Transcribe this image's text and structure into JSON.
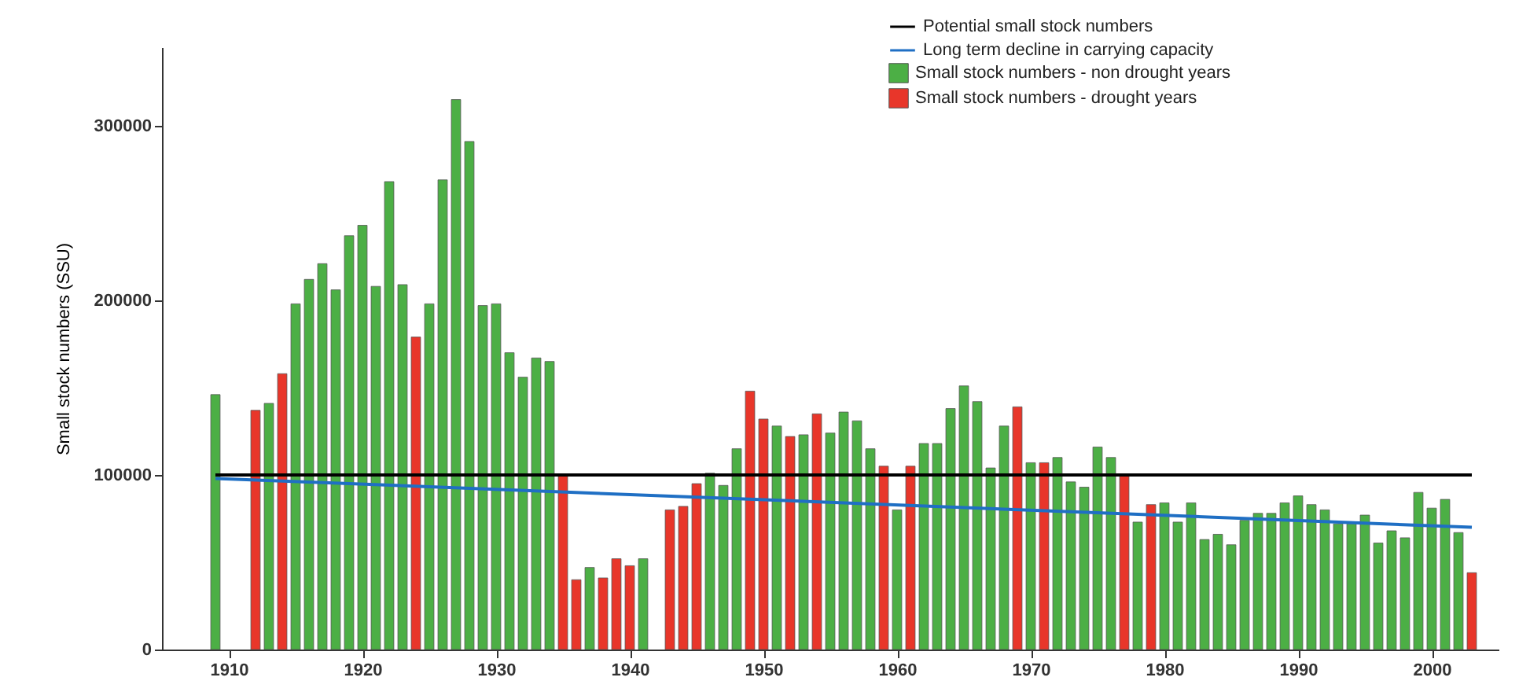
{
  "chart_data": {
    "type": "bar",
    "ylabel": "Small stock numbers (SSU)",
    "xlim": [
      1905,
      2005
    ],
    "xticks": [
      1910,
      1920,
      1930,
      1940,
      1950,
      1960,
      1970,
      1980,
      1990,
      2000
    ],
    "ylim": [
      0,
      345000
    ],
    "yticks": [
      0,
      100000,
      200000,
      300000
    ],
    "grid": false,
    "legend": "top right",
    "series": [
      {
        "name": "Potential small stock numbers",
        "type": "line",
        "color": "#000000",
        "x": [
          1909,
          2003
        ],
        "values": [
          100000,
          100000
        ]
      },
      {
        "name": "Long term decline in carrying capacity",
        "type": "line",
        "color": "#1f6fc4",
        "x": [
          1909,
          2003
        ],
        "values": [
          98000,
          70000
        ]
      },
      {
        "name": "Small stock numbers - non drought years",
        "color": "#4caf45",
        "x": [
          1909,
          1913,
          1915,
          1916,
          1917,
          1918,
          1919,
          1920,
          1921,
          1922,
          1923,
          1925,
          1926,
          1927,
          1928,
          1929,
          1930,
          1931,
          1932,
          1933,
          1934,
          1937,
          1941,
          1946,
          1947,
          1948,
          1951,
          1953,
          1955,
          1956,
          1957,
          1958,
          1960,
          1962,
          1963,
          1964,
          1965,
          1966,
          1967,
          1968,
          1970,
          1972,
          1973,
          1974,
          1975,
          1976,
          1978,
          1980,
          1981,
          1982,
          1983,
          1984,
          1985,
          1986,
          1987,
          1988,
          1989,
          1990,
          1991,
          1992,
          1993,
          1994,
          1995,
          1996,
          1997,
          1998,
          1999,
          2000,
          2001,
          2002
        ],
        "values": [
          146000,
          141000,
          198000,
          212000,
          221000,
          206000,
          237000,
          243000,
          208000,
          268000,
          209000,
          198000,
          269000,
          315000,
          291000,
          197000,
          198000,
          170000,
          156000,
          167000,
          165000,
          47000,
          52000,
          101000,
          94000,
          115000,
          128000,
          123000,
          124000,
          136000,
          131000,
          115000,
          80000,
          118000,
          118000,
          138000,
          151000,
          142000,
          104000,
          128000,
          107000,
          110000,
          96000,
          93000,
          116000,
          110000,
          73000,
          84000,
          73000,
          84000,
          63000,
          66000,
          60000,
          74000,
          78000,
          78000,
          84000,
          88000,
          83000,
          80000,
          72000,
          72000,
          77000,
          61000,
          68000,
          64000,
          90000,
          81000,
          86000,
          67000
        ]
      },
      {
        "name": "Small stock numbers - drought years",
        "color": "#e8362a",
        "x": [
          1912,
          1914,
          1924,
          1935,
          1936,
          1938,
          1939,
          1940,
          1943,
          1944,
          1945,
          1949,
          1950,
          1952,
          1954,
          1959,
          1961,
          1969,
          1971,
          1977,
          1979,
          2003
        ],
        "values": [
          137000,
          158000,
          179000,
          100000,
          40000,
          41000,
          52000,
          48000,
          80000,
          82000,
          95000,
          148000,
          132000,
          122000,
          135000,
          105000,
          105000,
          139000,
          107000,
          100000,
          83000,
          44000
        ]
      }
    ]
  }
}
